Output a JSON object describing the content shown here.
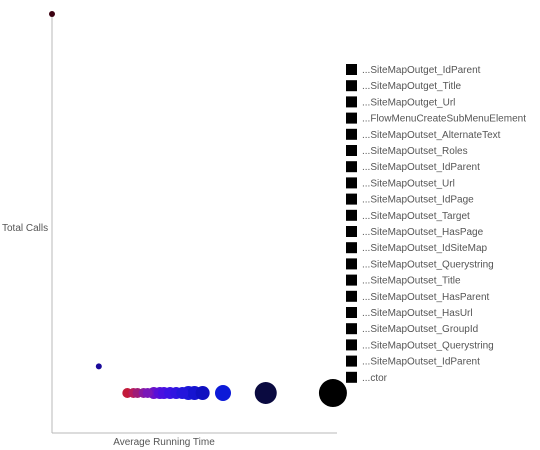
{
  "chart_data": {
    "type": "scatter",
    "title": "",
    "xlabel": "Average Running Time",
    "ylabel": "Total Calls",
    "grid": false,
    "legend_position": "right",
    "series": [
      {
        "name": "...SiteMapOutget_IdParent",
        "color": "#3a0010",
        "points": [
          {
            "x": 0.0,
            "y": 100,
            "size": 3
          }
        ]
      },
      {
        "name": "...SiteMapOutget_Title",
        "color": "#1a0a9a",
        "points": [
          {
            "x": 0.23,
            "y": 7.5,
            "size": 3
          }
        ]
      },
      {
        "name": "...SiteMapOutget_Url",
        "color": "#c21a3a",
        "points": [
          {
            "x": 0.37,
            "y": 0.5,
            "size": 5
          }
        ]
      },
      {
        "name": "...FlowMenuCreateSubMenuElement",
        "color": "#b81c5c",
        "points": [
          {
            "x": 0.4,
            "y": 0.5,
            "size": 5
          }
        ]
      },
      {
        "name": "...SiteMapOutset_AlternateText",
        "color": "#9e1c78",
        "points": [
          {
            "x": 0.42,
            "y": 0.5,
            "size": 5
          }
        ]
      },
      {
        "name": "...SiteMapOutset_Roles",
        "color": "#8a1aa0",
        "points": [
          {
            "x": 0.45,
            "y": 0.5,
            "size": 5
          }
        ]
      },
      {
        "name": "...SiteMapOutset_IdParent",
        "color": "#7a18b8",
        "points": [
          {
            "x": 0.47,
            "y": 0.5,
            "size": 5
          }
        ]
      },
      {
        "name": "...SiteMapOutset_Url",
        "color": "#6a12c8",
        "points": [
          {
            "x": 0.5,
            "y": 0.5,
            "size": 6
          }
        ]
      },
      {
        "name": "...SiteMapOutset_IdPage",
        "color": "#5810d8",
        "points": [
          {
            "x": 0.53,
            "y": 0.5,
            "size": 6
          }
        ]
      },
      {
        "name": "...SiteMapOutset_Target",
        "color": "#4a10e0",
        "points": [
          {
            "x": 0.55,
            "y": 0.5,
            "size": 6
          }
        ]
      },
      {
        "name": "...SiteMapOutset_HasPage",
        "color": "#3c12e4",
        "points": [
          {
            "x": 0.58,
            "y": 0.5,
            "size": 6
          }
        ]
      },
      {
        "name": "...SiteMapOutset_IdSiteMap",
        "color": "#3014e0",
        "points": [
          {
            "x": 0.61,
            "y": 0.5,
            "size": 6
          }
        ]
      },
      {
        "name": "...SiteMapOutset_Querystring",
        "color": "#2416dc",
        "points": [
          {
            "x": 0.64,
            "y": 0.5,
            "size": 6
          }
        ]
      },
      {
        "name": "...SiteMapOutset_Title",
        "color": "#1c18d8",
        "points": [
          {
            "x": 0.67,
            "y": 0.5,
            "size": 7
          }
        ]
      },
      {
        "name": "...SiteMapOutset_HasParent",
        "color": "#1614d0",
        "points": [
          {
            "x": 0.7,
            "y": 0.5,
            "size": 7
          }
        ]
      },
      {
        "name": "...SiteMapOutset_HasUrl",
        "color": "#1010c0",
        "points": [
          {
            "x": 0.74,
            "y": 0.5,
            "size": 7
          }
        ]
      },
      {
        "name": "...SiteMapOutset_GroupId",
        "color": "#0c1ad8",
        "points": [
          {
            "x": 0.84,
            "y": 0.5,
            "size": 8
          }
        ]
      },
      {
        "name": "...SiteMapOutset_Querystring",
        "color": "#0a0a40",
        "points": [
          {
            "x": 1.05,
            "y": 0.5,
            "size": 11
          }
        ]
      },
      {
        "name": "...SiteMapOutset_IdParent",
        "color": "#000000",
        "points": [
          {
            "x": 1.38,
            "y": 0.5,
            "size": 14
          }
        ]
      },
      {
        "name": "...ctor",
        "color": "#000000",
        "points": []
      }
    ],
    "xlim": [
      0,
      1.4
    ],
    "ylim": [
      -10,
      100
    ]
  }
}
